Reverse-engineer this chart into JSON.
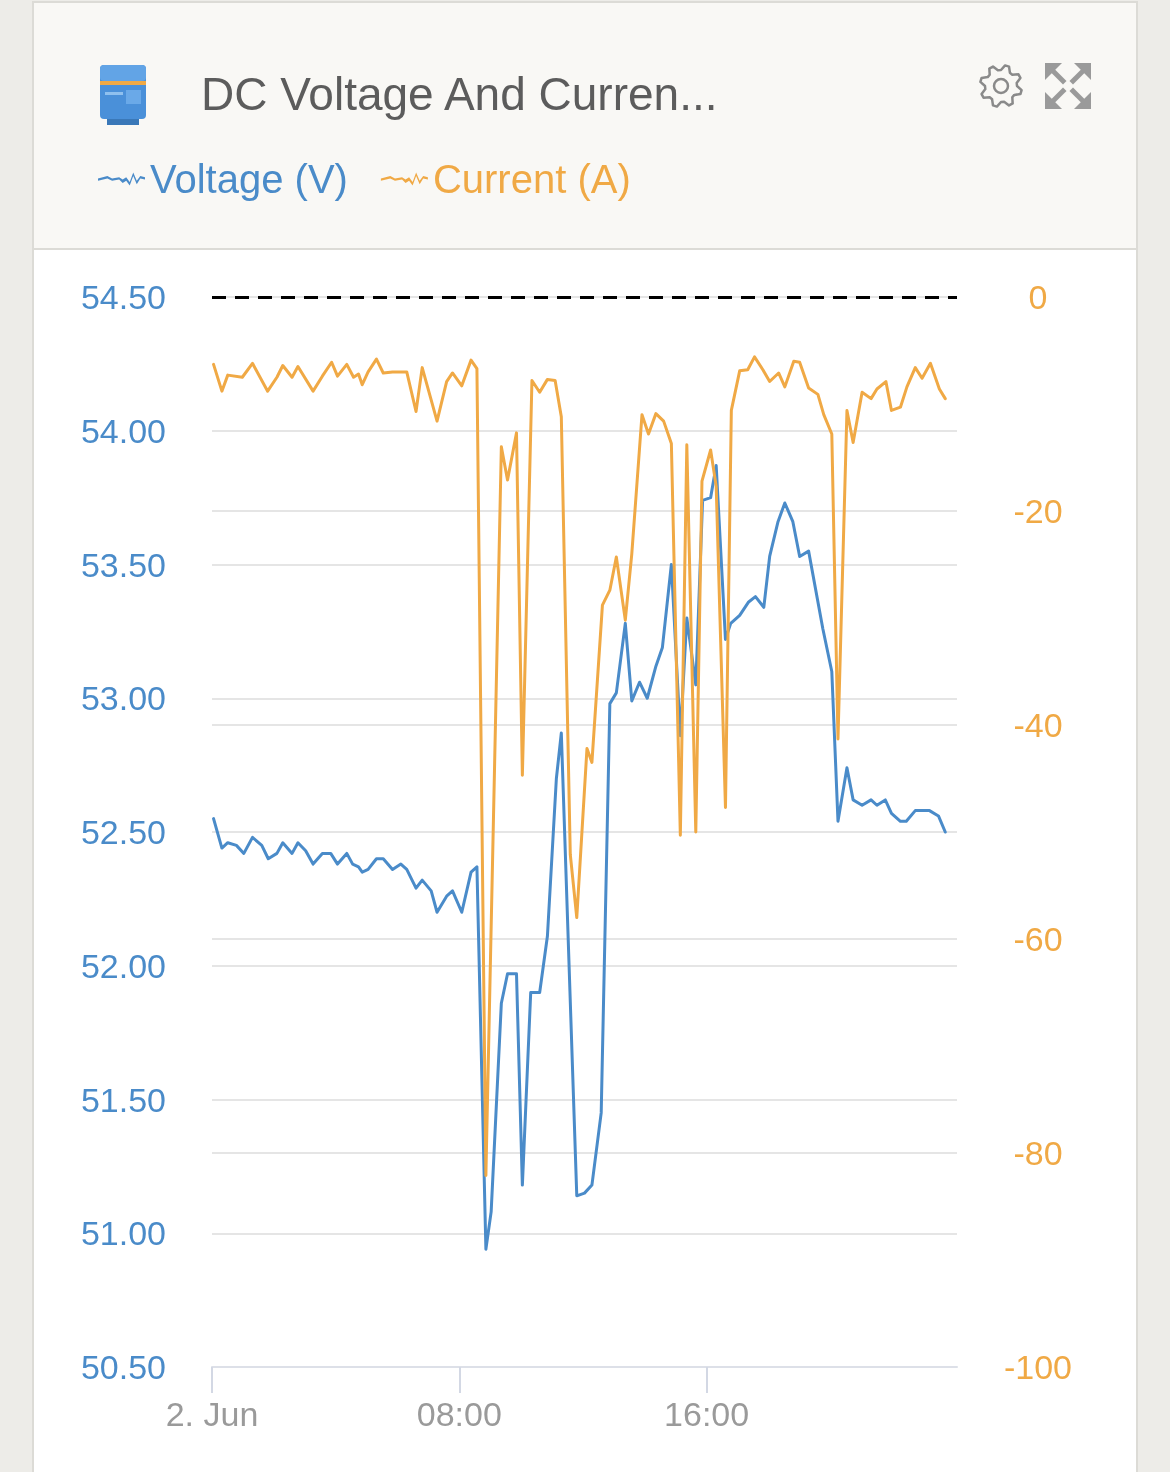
{
  "chart_data": {
    "type": "line",
    "title": "DC Voltage And Curren...",
    "legend": "top left",
    "marker": "none",
    "line_style": "solid",
    "grid": "y",
    "xlim": [
      0,
      24.1
    ],
    "xticks": [
      {
        "value": 0,
        "label": "2. Jun"
      },
      {
        "value": 8,
        "label": "08:00"
      },
      {
        "value": 16,
        "label": "16:00"
      }
    ],
    "ylim": [
      50.5,
      54.5
    ],
    "yticks": [
      {
        "value": 50.5,
        "label": "50.50"
      },
      {
        "value": 51,
        "label": "51.00"
      },
      {
        "value": 51.5,
        "label": "51.50"
      },
      {
        "value": 52,
        "label": "52.00"
      },
      {
        "value": 52.5,
        "label": "52.50"
      },
      {
        "value": 53,
        "label": "53.00"
      },
      {
        "value": 53.5,
        "label": "53.50"
      },
      {
        "value": 54,
        "label": "54.00"
      },
      {
        "value": 54.5,
        "label": "54.50"
      }
    ],
    "y2lim": [
      -100,
      0
    ],
    "y2ticks": [
      -100,
      -80,
      -60,
      -40,
      -20,
      0
    ],
    "ref_lines": [
      {
        "axis": "y2",
        "value": 0,
        "color": "#000000",
        "line_style": "dashed"
      }
    ],
    "series": [
      {
        "name": "Voltage (V)",
        "color": "#4a8bc9",
        "x": [
          0.05,
          0.32,
          0.51,
          0.79,
          1.03,
          1.31,
          1.61,
          1.82,
          2.1,
          2.29,
          2.59,
          2.78,
          3.03,
          3.27,
          3.57,
          3.84,
          4.06,
          4.36,
          4.55,
          4.74,
          4.86,
          5.05,
          5.32,
          5.54,
          5.84,
          6.11,
          6.3,
          6.6,
          6.8,
          7.09,
          7.28,
          7.59,
          7.78,
          8.08,
          8.38,
          8.57,
          8.86,
          9.03,
          9.36,
          9.56,
          9.85,
          10.04,
          10.31,
          10.6,
          10.85,
          11.14,
          11.3,
          11.8,
          12.05,
          12.29,
          12.59,
          12.87,
          13.08,
          13.37,
          13.58,
          13.83,
          14.08,
          14.36,
          14.57,
          14.86,
          15.15,
          15.36,
          15.65,
          15.87,
          16.13,
          16.31,
          16.61,
          16.78,
          17.07,
          17.36,
          17.58,
          17.85,
          18.04,
          18.31,
          18.53,
          18.79,
          19.01,
          19.3,
          19.76,
          20.05,
          20.25,
          20.54,
          20.74,
          21.03,
          21.32,
          21.51,
          21.78,
          21.98,
          22.27,
          22.46,
          22.75,
          23.21,
          23.5,
          23.72
        ],
        "values": [
          52.55,
          52.44,
          52.46,
          52.45,
          52.42,
          52.48,
          52.45,
          52.4,
          52.42,
          52.46,
          52.42,
          52.46,
          52.43,
          52.38,
          52.42,
          52.42,
          52.38,
          52.42,
          52.38,
          52.37,
          52.35,
          52.36,
          52.4,
          52.4,
          52.36,
          52.38,
          52.36,
          52.29,
          52.32,
          52.28,
          52.2,
          52.26,
          52.28,
          52.2,
          52.35,
          52.37,
          50.94,
          51.08,
          51.86,
          51.97,
          51.97,
          51.18,
          51.9,
          51.9,
          52.11,
          52.7,
          52.87,
          51.14,
          51.15,
          51.18,
          51.45,
          52.98,
          53.02,
          53.28,
          52.99,
          53.06,
          53.0,
          53.12,
          53.19,
          53.5,
          52.86,
          53.3,
          53.05,
          53.74,
          53.75,
          53.87,
          53.22,
          53.28,
          53.31,
          53.36,
          53.38,
          53.34,
          53.53,
          53.66,
          53.73,
          53.66,
          53.53,
          53.55,
          53.26,
          53.1,
          52.54,
          52.74,
          52.62,
          52.6,
          52.62,
          52.6,
          52.62,
          52.57,
          52.54,
          52.54,
          52.58,
          52.58,
          52.56,
          52.5
        ]
      },
      {
        "name": "Current (A)",
        "color": "#f0a945",
        "axis": "y2",
        "x": [
          0.05,
          0.32,
          0.51,
          0.98,
          1.31,
          1.8,
          2.1,
          2.29,
          2.59,
          2.78,
          3.27,
          3.57,
          3.87,
          4.06,
          4.36,
          4.58,
          4.74,
          4.86,
          5.05,
          5.32,
          5.54,
          5.84,
          6.3,
          6.6,
          6.8,
          7.28,
          7.59,
          7.78,
          8.08,
          8.38,
          8.57,
          8.86,
          9.36,
          9.56,
          9.85,
          10.04,
          10.35,
          10.6,
          10.85,
          11.1,
          11.3,
          11.59,
          11.8,
          12.13,
          12.29,
          12.63,
          12.87,
          13.08,
          13.37,
          13.58,
          13.91,
          14.12,
          14.36,
          14.61,
          14.86,
          15.15,
          15.36,
          15.65,
          15.85,
          16.13,
          16.31,
          16.61,
          16.8,
          17.07,
          17.33,
          17.55,
          17.82,
          18.04,
          18.33,
          18.53,
          18.82,
          19.01,
          19.3,
          19.6,
          19.79,
          20.05,
          20.25,
          20.54,
          20.74,
          21.03,
          21.32,
          21.51,
          21.8,
          21.98,
          22.27,
          22.48,
          22.75,
          22.97,
          23.24,
          23.53,
          23.72
        ],
        "values": [
          -6.3,
          -8.8,
          -7.3,
          -7.5,
          -6.2,
          -8.8,
          -7.5,
          -6.4,
          -7.5,
          -6.5,
          -8.8,
          -7.4,
          -6.1,
          -7.4,
          -6.3,
          -7.5,
          -7.2,
          -8.2,
          -7.0,
          -5.8,
          -7.1,
          -7.0,
          -7.0,
          -10.7,
          -6.6,
          -11.6,
          -7.9,
          -7.1,
          -8.3,
          -5.9,
          -6.7,
          -82.1,
          -14.0,
          -17.1,
          -12.7,
          -44.7,
          -7.8,
          -8.9,
          -7.7,
          -7.8,
          -11.2,
          -52.1,
          -58.0,
          -42.2,
          -43.5,
          -28.8,
          -27.4,
          -24.3,
          -30.2,
          -24.0,
          -11.0,
          -12.8,
          -10.9,
          -11.6,
          -13.7,
          -50.3,
          -13.8,
          -50.0,
          -17.2,
          -14.3,
          -17.7,
          -47.7,
          -10.6,
          -6.9,
          -6.8,
          -5.6,
          -6.8,
          -7.9,
          -7.1,
          -8.4,
          -6.0,
          -6.1,
          -8.5,
          -9.1,
          -11.0,
          -12.8,
          -41.3,
          -10.6,
          -13.6,
          -8.9,
          -9.5,
          -8.6,
          -7.9,
          -10.6,
          -10.3,
          -8.4,
          -6.6,
          -7.6,
          -6.2,
          -8.6,
          -9.5
        ]
      }
    ]
  }
}
